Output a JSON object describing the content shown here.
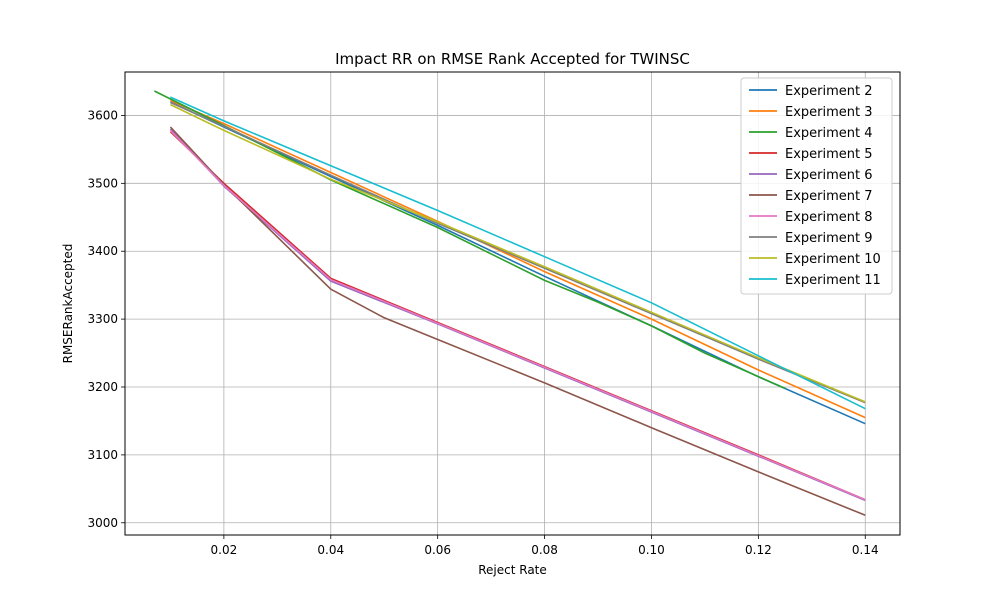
{
  "chart_data": {
    "type": "line",
    "title": "Impact RR on RMSE Rank Accepted for TWINSC",
    "xlabel": "Reject Rate",
    "ylabel": "RMSERankAccepted",
    "xlim": [
      0.0015,
      0.1465
    ],
    "ylim": [
      2982,
      3664
    ],
    "xticks": [
      0.02,
      0.04,
      0.06,
      0.08,
      0.1,
      0.12,
      0.14
    ],
    "xtick_labels": [
      "0.02",
      "0.04",
      "0.06",
      "0.08",
      "0.10",
      "0.12",
      "0.14"
    ],
    "yticks": [
      3000,
      3100,
      3200,
      3300,
      3400,
      3500,
      3600
    ],
    "ytick_labels": [
      "3000",
      "3100",
      "3200",
      "3300",
      "3400",
      "3500",
      "3600"
    ],
    "grid": true,
    "legend_position": "top-right",
    "series": [
      {
        "name": "Experiment 2",
        "color": "#1f77b4",
        "x": [
          0.01,
          0.02,
          0.04,
          0.06,
          0.08,
          0.1,
          0.12,
          0.14
        ],
        "y": [
          3620,
          3583,
          3510,
          3438,
          3363,
          3290,
          3215,
          3146
        ]
      },
      {
        "name": "Experiment 3",
        "color": "#ff7f0e",
        "x": [
          0.01,
          0.02,
          0.04,
          0.06,
          0.08,
          0.1,
          0.12,
          0.14
        ],
        "y": [
          3622,
          3588,
          3516,
          3444,
          3370,
          3300,
          3225,
          3155
        ]
      },
      {
        "name": "Experiment 4",
        "color": "#2ca02c",
        "x": [
          0.007,
          0.02,
          0.04,
          0.06,
          0.08,
          0.09,
          0.1,
          0.11,
          0.125
        ],
        "y": [
          3636,
          3585,
          3505,
          3435,
          3357,
          3325,
          3290,
          3250,
          3198
        ]
      },
      {
        "name": "Experiment 5",
        "color": "#d62728",
        "x": [
          0.01,
          0.02,
          0.04,
          0.06,
          0.08,
          0.1,
          0.12,
          0.14
        ],
        "y": [
          3576,
          3500,
          3360,
          3295,
          3230,
          3165,
          3100,
          3034
        ]
      },
      {
        "name": "Experiment 6",
        "color": "#9467bd",
        "x": [
          0.01,
          0.02,
          0.04,
          0.06,
          0.08,
          0.1,
          0.12,
          0.14
        ],
        "y": [
          3580,
          3496,
          3356,
          3293,
          3228,
          3163,
          3098,
          3033
        ]
      },
      {
        "name": "Experiment 7",
        "color": "#8c564b",
        "x": [
          0.01,
          0.02,
          0.04,
          0.05,
          0.06,
          0.08,
          0.1,
          0.12,
          0.14
        ],
        "y": [
          3583,
          3498,
          3344,
          3302,
          3270,
          3206,
          3140,
          3075,
          3011
        ]
      },
      {
        "name": "Experiment 8",
        "color": "#e377c2",
        "x": [
          0.01,
          0.02,
          0.04,
          0.06,
          0.08,
          0.1,
          0.12,
          0.14
        ],
        "y": [
          3578,
          3497,
          3358,
          3294,
          3229,
          3164,
          3099,
          3034
        ]
      },
      {
        "name": "Experiment 9",
        "color": "#7f7f7f",
        "x": [
          0.01,
          0.02,
          0.04,
          0.06,
          0.08,
          0.1,
          0.12,
          0.14
        ],
        "y": [
          3619,
          3584,
          3512,
          3441,
          3375,
          3308,
          3241,
          3177
        ]
      },
      {
        "name": "Experiment 10",
        "color": "#bcbd22",
        "x": [
          0.01,
          0.02,
          0.04,
          0.06,
          0.08,
          0.1,
          0.12,
          0.14
        ],
        "y": [
          3616,
          3578,
          3506,
          3443,
          3377,
          3310,
          3243,
          3178
        ]
      },
      {
        "name": "Experiment 11",
        "color": "#17becf",
        "x": [
          0.01,
          0.02,
          0.04,
          0.06,
          0.08,
          0.1,
          0.12,
          0.14
        ],
        "y": [
          3627,
          3592,
          3526,
          3460,
          3392,
          3324,
          3246,
          3168
        ]
      }
    ]
  }
}
